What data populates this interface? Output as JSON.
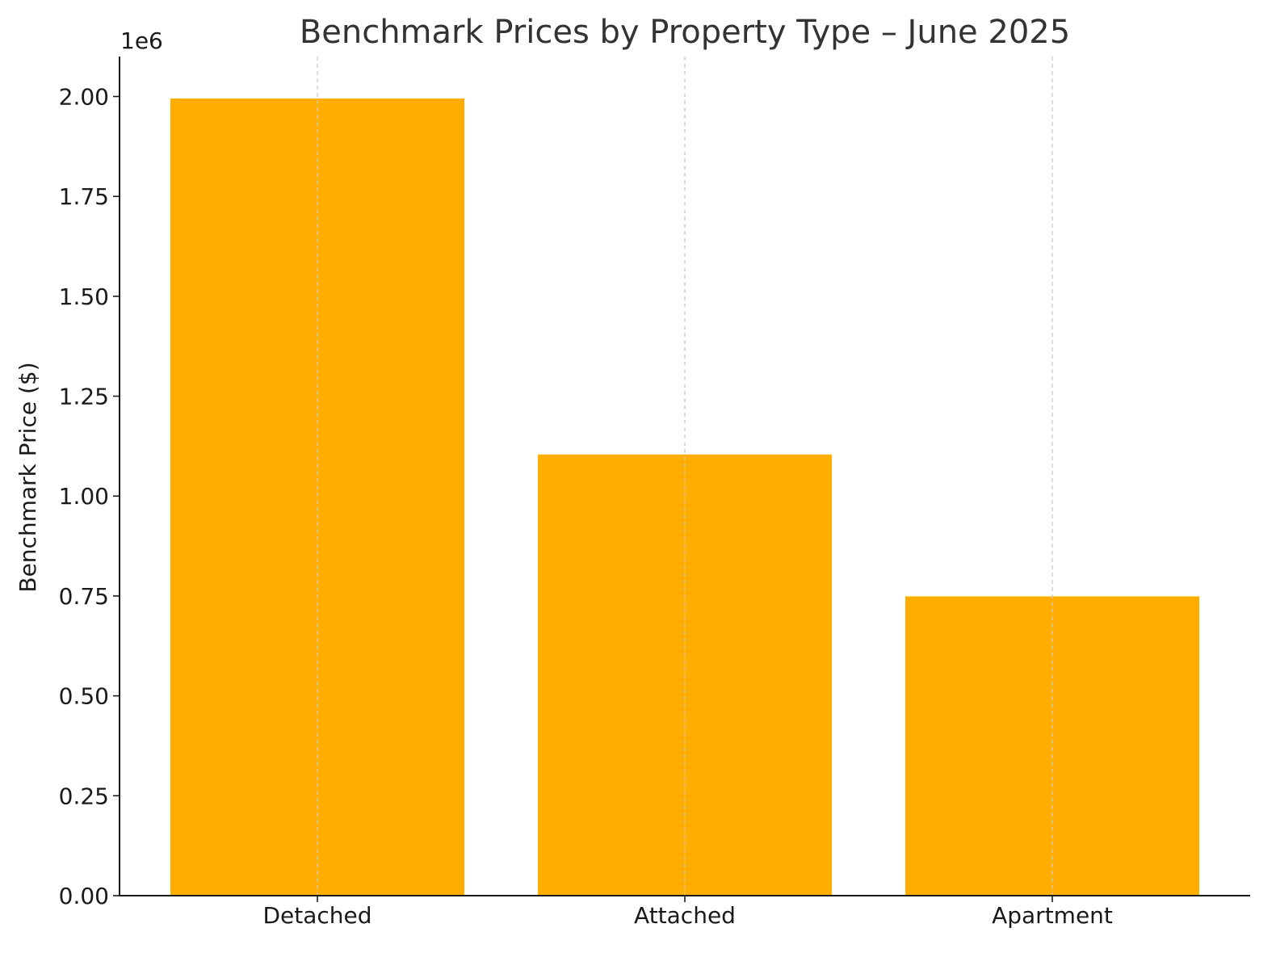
{
  "chart_data": {
    "type": "bar",
    "title": "Benchmark Prices by Property Type – June 2025",
    "xlabel": "",
    "ylabel": "Benchmark Price ($)",
    "y_offset_label": "1e6",
    "categories": [
      "Detached",
      "Attached",
      "Apartment"
    ],
    "values": [
      1995000,
      1104000,
      749000
    ],
    "ylim": [
      0,
      2100000
    ],
    "y_ticks": [
      0,
      250000,
      500000,
      750000,
      1000000,
      1250000,
      1500000,
      1750000,
      2000000
    ],
    "y_tick_labels": [
      "0.00",
      "0.25",
      "0.50",
      "0.75",
      "1.00",
      "1.25",
      "1.50",
      "1.75",
      "2.00"
    ],
    "grid": {
      "x": true,
      "y": false,
      "style": "dashed"
    },
    "legend": "none",
    "colors": {
      "bar": "#FFAE00",
      "grid": "#c8c8c8",
      "axis": "#1a1a1a",
      "title": "#333333"
    }
  }
}
